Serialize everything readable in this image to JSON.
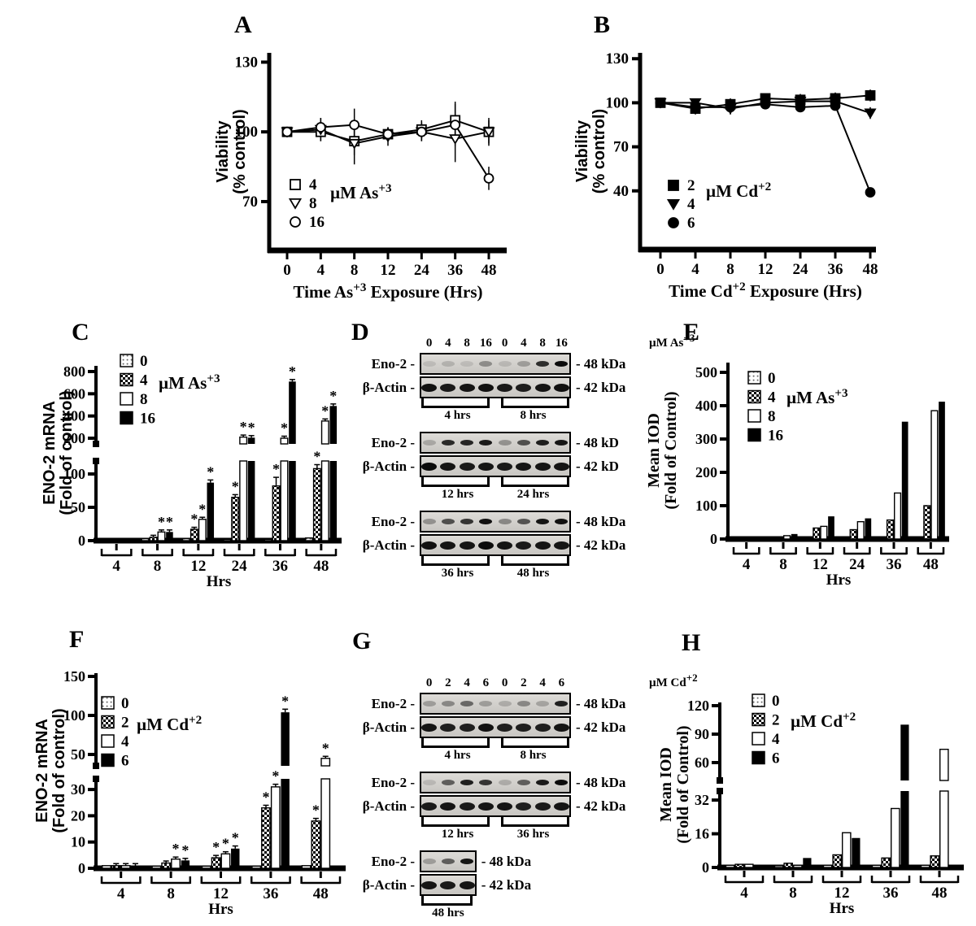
{
  "chart_data": [
    {
      "id": "A",
      "letter": "A",
      "kind": "line",
      "ylabel": [
        "Viability",
        "(% control)"
      ],
      "xlabel": {
        "pre": "Time As",
        "sup": "+3",
        "post": " Exposure (Hrs)"
      },
      "yticks": [
        70,
        100,
        130
      ],
      "xticks": [
        "0",
        "4",
        "8",
        "12",
        "24",
        "36",
        "48"
      ],
      "legend_title": {
        "pre": "µM As",
        "sup": "+3"
      },
      "series": [
        {
          "label": "4",
          "marker": "square-open",
          "values": [
            100,
            100,
            96,
            99,
            101,
            105,
            100
          ],
          "err": [
            2,
            4,
            6,
            3,
            4,
            8,
            5
          ]
        },
        {
          "label": "8",
          "marker": "triangle-open",
          "values": [
            100,
            101,
            95,
            98,
            100,
            97,
            100
          ],
          "err": [
            2,
            5,
            9,
            4,
            4,
            10,
            6
          ]
        },
        {
          "label": "16",
          "marker": "circle-open",
          "values": [
            100,
            102,
            103,
            99,
            100,
            103,
            80
          ],
          "err": [
            2,
            4,
            7,
            3,
            4,
            9,
            5
          ]
        }
      ]
    },
    {
      "id": "B",
      "letter": "B",
      "kind": "line",
      "ylabel": [
        "Viability",
        "(% control)"
      ],
      "xlabel": {
        "pre": "Time Cd",
        "sup": "+2",
        "post": " Exposure (Hrs)"
      },
      "yticks": [
        40,
        70,
        100,
        130
      ],
      "xticks": [
        "0",
        "4",
        "8",
        "12",
        "24",
        "36",
        "48"
      ],
      "legend_title": {
        "pre": "µM Cd",
        "sup": "+2"
      },
      "series": [
        {
          "label": "2",
          "marker": "square-filled",
          "values": [
            100,
            96,
            99,
            103,
            102,
            103,
            105
          ],
          "err": [
            1,
            4,
            4,
            3,
            4,
            4,
            4
          ]
        },
        {
          "label": "4",
          "marker": "triangle-filled",
          "values": [
            100,
            100,
            96,
            100,
            101,
            101,
            93
          ],
          "err": [
            1,
            3,
            4,
            2,
            3,
            3,
            4
          ]
        },
        {
          "label": "6",
          "marker": "circle-filled",
          "values": [
            100,
            97,
            97,
            99,
            97,
            98,
            39
          ],
          "err": [
            1,
            3,
            3,
            2,
            2,
            3,
            2
          ]
        }
      ]
    },
    {
      "id": "C",
      "letter": "C",
      "kind": "bar",
      "ylabel": [
        "ENO-2 mRNA",
        "(Fold of control)"
      ],
      "xlabel": "Hrs",
      "groups": [
        "4",
        "8",
        "12",
        "24",
        "36",
        "48"
      ],
      "axis": {
        "lower": {
          "ticks": [
            0,
            50,
            100
          ]
        },
        "upper": {
          "ticks": [
            200,
            400,
            600,
            800
          ]
        }
      },
      "legend_title": {
        "pre": "µM As",
        "sup": "+3"
      },
      "series": [
        {
          "label": "0",
          "pattern": "dots",
          "values": [
            1,
            3,
            3,
            2,
            2,
            4
          ],
          "err": [
            0,
            0,
            0,
            0,
            0,
            0
          ],
          "sig": [
            0,
            0,
            0,
            0,
            0,
            0
          ]
        },
        {
          "label": "4",
          "pattern": "checker",
          "values": [
            1,
            5,
            17,
            65,
            82,
            108
          ],
          "err": [
            0,
            1,
            3,
            4,
            13,
            6
          ],
          "sig": [
            0,
            0,
            1,
            1,
            1,
            1
          ]
        },
        {
          "label": "8",
          "pattern": "white",
          "values": [
            1,
            13,
            32,
            210,
            200,
            355
          ],
          "err": [
            0,
            2,
            3,
            12,
            12,
            12
          ],
          "sig": [
            0,
            1,
            1,
            1,
            1,
            1
          ]
        },
        {
          "label": "16",
          "pattern": "black",
          "values": [
            1,
            13,
            87,
            205,
            710,
            490
          ],
          "err": [
            0,
            2,
            4,
            12,
            12,
            12
          ],
          "sig": [
            0,
            1,
            1,
            1,
            1,
            1
          ]
        }
      ]
    },
    {
      "id": "D",
      "letter": "D",
      "kind": "blot",
      "lanes": [
        "0",
        "4",
        "8",
        "16",
        "0",
        "4",
        "8",
        "16"
      ],
      "unit": {
        "pre": "µM As",
        "sup": "+3"
      },
      "sets": [
        {
          "times": [
            "4 hrs",
            "8 hrs"
          ],
          "rows": [
            {
              "label": "Eno-2 -",
              "kda": "- 48 kDa",
              "bands": [
                0.1,
                0.15,
                0.1,
                0.33,
                0.12,
                0.25,
                0.78,
                0.95
              ]
            },
            {
              "label": "β-Actin -",
              "kda": "- 42 kDa",
              "bands": [
                0.92,
                0.88,
                0.9,
                0.92,
                0.88,
                0.86,
                0.9,
                0.92
              ]
            }
          ]
        },
        {
          "times": [
            "12 hrs",
            "24 hrs"
          ],
          "rows": [
            {
              "label": "Eno-2 -",
              "kda": "- 48 kD",
              "bands": [
                0.2,
                0.8,
                0.82,
                0.88,
                0.3,
                0.62,
                0.86,
                0.9
              ]
            },
            {
              "label": "β-Actin -",
              "kda": "- 42 kD",
              "bands": [
                0.95,
                0.9,
                0.88,
                0.9,
                0.88,
                0.9,
                0.9,
                0.9
              ]
            }
          ]
        },
        {
          "times": [
            "36 hrs",
            "48 hrs"
          ],
          "rows": [
            {
              "label": "Eno-2 -",
              "kda": "- 48 kDa",
              "bands": [
                0.3,
                0.62,
                0.75,
                0.92,
                0.35,
                0.6,
                0.9,
                0.92
              ]
            },
            {
              "label": "β-Actin -",
              "kda": "- 42 kDa",
              "bands": [
                0.92,
                0.9,
                0.9,
                0.95,
                0.9,
                0.88,
                0.9,
                0.9
              ]
            }
          ]
        }
      ]
    },
    {
      "id": "E",
      "letter": "E",
      "kind": "bar",
      "ylabel": [
        "Mean IOD",
        "(Fold of Control)"
      ],
      "xlabel": "Hrs",
      "groups": [
        "4",
        "8",
        "12",
        "24",
        "36",
        "48"
      ],
      "axis": {
        "lower": {
          "ticks": [
            0,
            100,
            200,
            300,
            400,
            500
          ]
        }
      },
      "legend_title": {
        "pre": "µM As",
        "sup": "+3"
      },
      "series": [
        {
          "label": "0",
          "pattern": "dots",
          "values": [
            1,
            1,
            1,
            1,
            1,
            1
          ]
        },
        {
          "label": "4",
          "pattern": "checker",
          "values": [
            1,
            2,
            33,
            28,
            57,
            100
          ]
        },
        {
          "label": "8",
          "pattern": "white",
          "values": [
            1,
            10,
            38,
            52,
            138,
            385
          ]
        },
        {
          "label": "16",
          "pattern": "black",
          "values": [
            2,
            15,
            68,
            62,
            352,
            412
          ]
        }
      ]
    },
    {
      "id": "F",
      "letter": "F",
      "kind": "bar",
      "ylabel": [
        "ENO-2 mRNA",
        "(Fold of control)"
      ],
      "xlabel": "Hrs",
      "groups": [
        "4",
        "8",
        "12",
        "36",
        "48"
      ],
      "axis": {
        "lower": {
          "ticks": [
            0,
            10,
            20,
            30
          ]
        },
        "upper": {
          "ticks": [
            50,
            100,
            150
          ]
        }
      },
      "legend_title": {
        "pre": "µM Cd",
        "sup": "+2"
      },
      "series": [
        {
          "label": "0",
          "pattern": "dots",
          "values": [
            1,
            0.8,
            0.8,
            0.8,
            1
          ],
          "err": [
            0,
            0,
            0,
            0,
            0
          ],
          "sig": [
            0,
            0,
            0,
            0,
            0
          ]
        },
        {
          "label": "2",
          "pattern": "checker",
          "values": [
            1,
            2,
            4,
            23,
            18
          ],
          "err": [
            0.1,
            0.3,
            0.9,
            1,
            1
          ],
          "sig": [
            0,
            0,
            1,
            1,
            1
          ]
        },
        {
          "label": "4",
          "pattern": "white",
          "values": [
            1,
            3.5,
            5.5,
            31,
            45
          ],
          "err": [
            0.1,
            0.5,
            0.8,
            1,
            2
          ],
          "sig": [
            0,
            1,
            1,
            1,
            1
          ]
        },
        {
          "label": "6",
          "pattern": "black",
          "values": [
            1,
            3,
            7.5,
            104,
            null
          ],
          "err": [
            0.1,
            0.5,
            1,
            4,
            0
          ],
          "sig": [
            0,
            1,
            1,
            1,
            0
          ]
        }
      ]
    },
    {
      "id": "G",
      "letter": "G",
      "kind": "blot",
      "lanes": [
        "0",
        "2",
        "4",
        "6",
        "0",
        "2",
        "4",
        "6"
      ],
      "unit": {
        "pre": "µM Cd",
        "sup": "+2"
      },
      "sets": [
        {
          "times": [
            "4 hrs",
            "8 hrs"
          ],
          "rows": [
            {
              "label": "Eno-2 -",
              "kda": "- 48 kDa",
              "bands": [
                0.25,
                0.35,
                0.5,
                0.25,
                0.18,
                0.35,
                0.22,
                0.85
              ]
            },
            {
              "label": "β-Actin -",
              "kda": "- 42 kDa",
              "bands": [
                0.9,
                0.85,
                0.85,
                0.92,
                0.85,
                0.85,
                0.85,
                0.9
              ]
            }
          ]
        },
        {
          "times": [
            "12 hrs",
            "36 hrs"
          ],
          "rows": [
            {
              "label": "Eno-2 -",
              "kda": "- 48 kDa",
              "bands": [
                0.12,
                0.55,
                0.85,
                0.75,
                0.18,
                0.55,
                0.88,
                0.95
              ]
            },
            {
              "label": "β-Actin -",
              "kda": "- 42 kDa",
              "bands": [
                0.88,
                0.9,
                0.88,
                0.9,
                0.9,
                0.85,
                0.88,
                0.9
              ]
            }
          ]
        },
        {
          "times": [
            "48 hrs"
          ],
          "rows": [
            {
              "label": "Eno-2 -",
              "kda": "- 48 kDa",
              "bands": [
                0.25,
                0.55,
                0.9
              ]
            },
            {
              "label": "β-Actin -",
              "kda": "- 42 kDa",
              "bands": [
                0.9,
                0.88,
                0.9
              ]
            }
          ]
        }
      ]
    },
    {
      "id": "H",
      "letter": "H",
      "kind": "bar",
      "ylabel": [
        "Mean IOD",
        "(Fold of Control)"
      ],
      "xlabel": "Hrs",
      "groups": [
        "4",
        "8",
        "12",
        "36",
        "48"
      ],
      "axis": {
        "lower": {
          "ticks": [
            0,
            16,
            32
          ]
        },
        "upper": {
          "ticks": [
            60,
            90,
            120
          ]
        }
      },
      "legend_title": {
        "pre": "µM Cd",
        "sup": "+2"
      },
      "series": [
        {
          "label": "0",
          "pattern": "dots",
          "values": [
            1,
            0.8,
            1,
            1,
            1
          ]
        },
        {
          "label": "2",
          "pattern": "checker",
          "values": [
            1.5,
            2,
            6,
            4.5,
            5.5
          ]
        },
        {
          "label": "4",
          "pattern": "white",
          "values": [
            1.5,
            1,
            16.5,
            28,
            74
          ]
        },
        {
          "label": "6",
          "pattern": "black",
          "values": [
            0.5,
            4.5,
            14,
            100,
            null
          ]
        }
      ]
    }
  ],
  "colors": {
    "ink": "#000000",
    "blot_bg": "#d4d2ce",
    "background": "#ffffff"
  }
}
